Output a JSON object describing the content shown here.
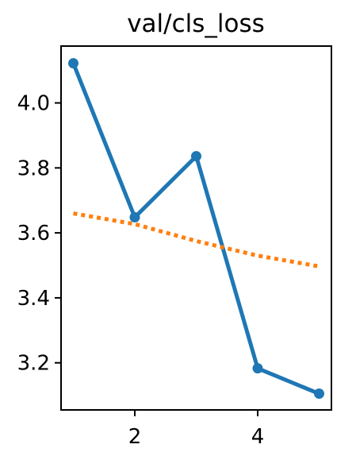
{
  "chart_data": {
    "type": "line",
    "title": "val/cls_loss",
    "xlabel": "",
    "ylabel": "",
    "xlim": [
      0.8,
      5.2
    ],
    "ylim": [
      3.055,
      4.175
    ],
    "xticks": [
      2,
      4
    ],
    "yticks": [
      3.2,
      3.4,
      3.6,
      3.8,
      4.0
    ],
    "ytick_labels": [
      "3.2",
      "3.4",
      "3.6",
      "3.8",
      "4.0"
    ],
    "xtick_labels": [
      "2",
      "4"
    ],
    "grid": false,
    "series": [
      {
        "style": "solid-markers",
        "color": "#1f77b4",
        "x": [
          1,
          2,
          3,
          4,
          5
        ],
        "y": [
          4.122,
          3.648,
          3.836,
          3.183,
          3.105
        ]
      },
      {
        "style": "dotted",
        "color": "#ff7f0e",
        "x": [
          1,
          2,
          3,
          4,
          5
        ],
        "y": [
          3.66,
          3.627,
          3.575,
          3.53,
          3.497
        ]
      }
    ]
  }
}
